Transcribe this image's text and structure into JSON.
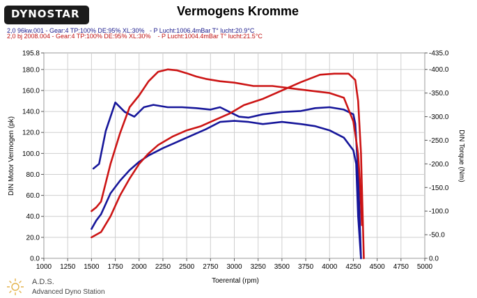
{
  "header": {
    "logo_text": "DYNOSTAR",
    "title": "Vermogens Kromme",
    "runs": [
      {
        "text": "2,0 96kw.001 - Gear:4 TP:100% DE:95% XL:30%   - P Lucht:1006.4mBar T° lucht:20.9°C",
        "color": "#1a1a8c"
      },
      {
        "text": "2,0 bj 2008.004 - Gear:4 TP:100% DE:95% XL:30%    - P Lucht:1004.4mBar T° lucht:21.5°C",
        "color": "#c01010"
      }
    ]
  },
  "footer": {
    "title": "A.D.S.",
    "subtitle": "Advanced Dyno Station"
  },
  "chart_data": {
    "type": "line",
    "title": "Vermogens Kromme",
    "xlabel": "Toerental (rpm)",
    "ylabel": "DIN Motor Vermogen (pk)",
    "y2label": "DIN Torque (Nm)",
    "xlim": [
      1000,
      5000
    ],
    "ylim": [
      0,
      195.8
    ],
    "y2lim": [
      0,
      -435
    ],
    "x_ticks": [
      1000,
      1250,
      1500,
      1750,
      2000,
      2250,
      2500,
      2750,
      3000,
      3250,
      3500,
      3750,
      4000,
      4250,
      4500,
      4750,
      5000
    ],
    "y_ticks": [
      0.0,
      20.0,
      40.0,
      60.0,
      80.0,
      100.0,
      120.0,
      140.0,
      160.0,
      180.0,
      195.8
    ],
    "y2_ticks": [
      0.0,
      -50.0,
      -100.0,
      -150.0,
      -200.0,
      -250.0,
      -300.0,
      -350.0,
      -400.0,
      -435.0
    ],
    "grid": true,
    "colors": {
      "blue": "#16169a",
      "red": "#cc1414"
    },
    "series": [
      {
        "run": "2,0 96kw.001",
        "kind": "torque",
        "axis": "y2",
        "color": "#16169a",
        "x": [
          1520,
          1580,
          1650,
          1750,
          1850,
          1950,
          2050,
          2150,
          2300,
          2450,
          2600,
          2750,
          2850,
          2950,
          3050,
          3150,
          3300,
          3500,
          3700,
          3850,
          4000,
          4150,
          4250,
          4270,
          4300,
          4330
        ],
        "y": [
          190,
          200,
          270,
          330,
          310,
          300,
          320,
          325,
          320,
          320,
          318,
          315,
          320,
          310,
          300,
          298,
          305,
          310,
          312,
          318,
          320,
          315,
          305,
          285,
          180,
          0
        ]
      },
      {
        "run": "2,0 96kw.001",
        "kind": "power",
        "axis": "y",
        "color": "#16169a",
        "x": [
          1500,
          1550,
          1600,
          1650,
          1700,
          1800,
          1900,
          2000,
          2100,
          2250,
          2400,
          2550,
          2700,
          2850,
          3000,
          3150,
          3300,
          3500,
          3700,
          3850,
          4000,
          4150,
          4250,
          4280,
          4300,
          4330
        ],
        "y": [
          28,
          36,
          42,
          52,
          62,
          74,
          84,
          92,
          98,
          105,
          111,
          117,
          123,
          130,
          131,
          130,
          128,
          130,
          128,
          126,
          122,
          115,
          103,
          90,
          40,
          0
        ]
      },
      {
        "run": "2,0 bj 2008.004",
        "kind": "torque",
        "axis": "y2",
        "color": "#cc1414",
        "x": [
          1500,
          1550,
          1600,
          1700,
          1800,
          1900,
          2000,
          2100,
          2200,
          2300,
          2400,
          2500,
          2600,
          2700,
          2850,
          3000,
          3200,
          3400,
          3600,
          3800,
          4000,
          4150,
          4250,
          4280,
          4300,
          4320,
          4340
        ],
        "y": [
          100,
          108,
          120,
          200,
          265,
          320,
          345,
          375,
          395,
          400,
          398,
          392,
          385,
          380,
          375,
          372,
          365,
          365,
          360,
          355,
          350,
          340,
          290,
          250,
          220,
          160,
          70
        ]
      },
      {
        "run": "2,0 bj 2008.004",
        "kind": "power",
        "axis": "y",
        "color": "#cc1414",
        "x": [
          1500,
          1600,
          1700,
          1800,
          1900,
          2000,
          2100,
          2200,
          2350,
          2500,
          2650,
          2800,
          2950,
          3100,
          3300,
          3500,
          3700,
          3900,
          4050,
          4200,
          4270,
          4300,
          4330,
          4360
        ],
        "y": [
          20,
          25,
          40,
          60,
          76,
          90,
          100,
          108,
          116,
          122,
          126,
          132,
          138,
          146,
          152,
          160,
          168,
          175,
          176,
          176,
          170,
          150,
          100,
          0
        ]
      }
    ]
  }
}
